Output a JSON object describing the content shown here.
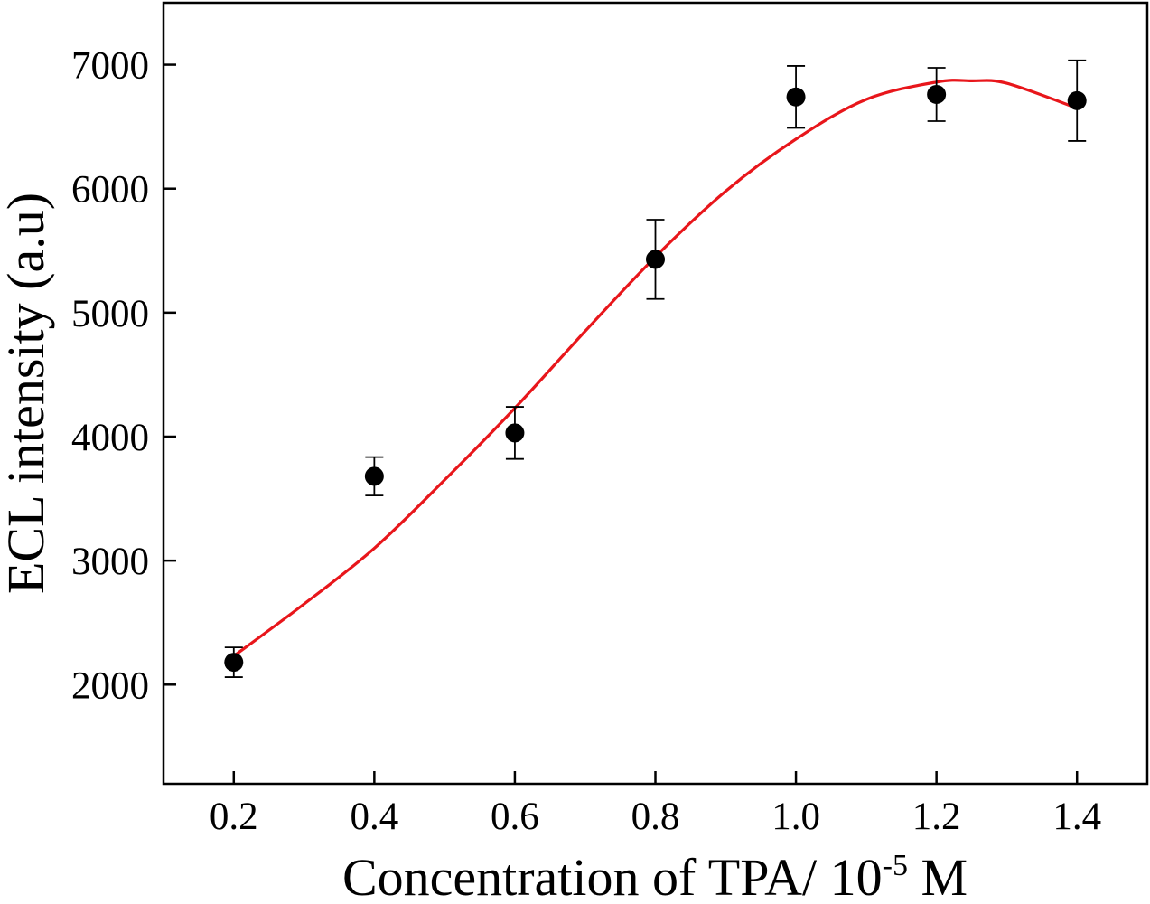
{
  "chart_data": {
    "type": "scatter",
    "title": "",
    "xlabel": {
      "prefix": "Concentration of TPA/ 10",
      "superscript": "-5",
      "suffix": " M"
    },
    "ylabel": "ECL intensity (a.u)",
    "xlim": [
      0.1,
      1.5
    ],
    "ylim": [
      1200,
      7500
    ],
    "x_ticks": [
      "0.2",
      "0.4",
      "0.6",
      "0.8",
      "1.0",
      "1.2",
      "1.4"
    ],
    "y_ticks": [
      "2000",
      "3000",
      "4000",
      "5000",
      "6000",
      "7000"
    ],
    "grid": false,
    "series": [
      {
        "name": "ECL intensity",
        "kind": "points-with-error-bars",
        "x": [
          0.2,
          0.4,
          0.6,
          0.8,
          1.0,
          1.2,
          1.4
        ],
        "y": [
          2180,
          3680,
          4030,
          5430,
          6740,
          6760,
          6710
        ],
        "error": [
          120,
          155,
          210,
          320,
          250,
          215,
          325
        ]
      },
      {
        "name": "fit",
        "kind": "fit-curve",
        "x": [
          0.2,
          0.3,
          0.4,
          0.5,
          0.6,
          0.7,
          0.8,
          0.9,
          1.0,
          1.1,
          1.2,
          1.25,
          1.3,
          1.4
        ],
        "y": [
          2230,
          2650,
          3100,
          3650,
          4230,
          4850,
          5450,
          5980,
          6400,
          6720,
          6860,
          6870,
          6850,
          6650
        ]
      }
    ],
    "colors": {
      "points": "#000000",
      "error_bars": "#000000",
      "fit": "#e8161b",
      "axes": "#000000"
    }
  }
}
